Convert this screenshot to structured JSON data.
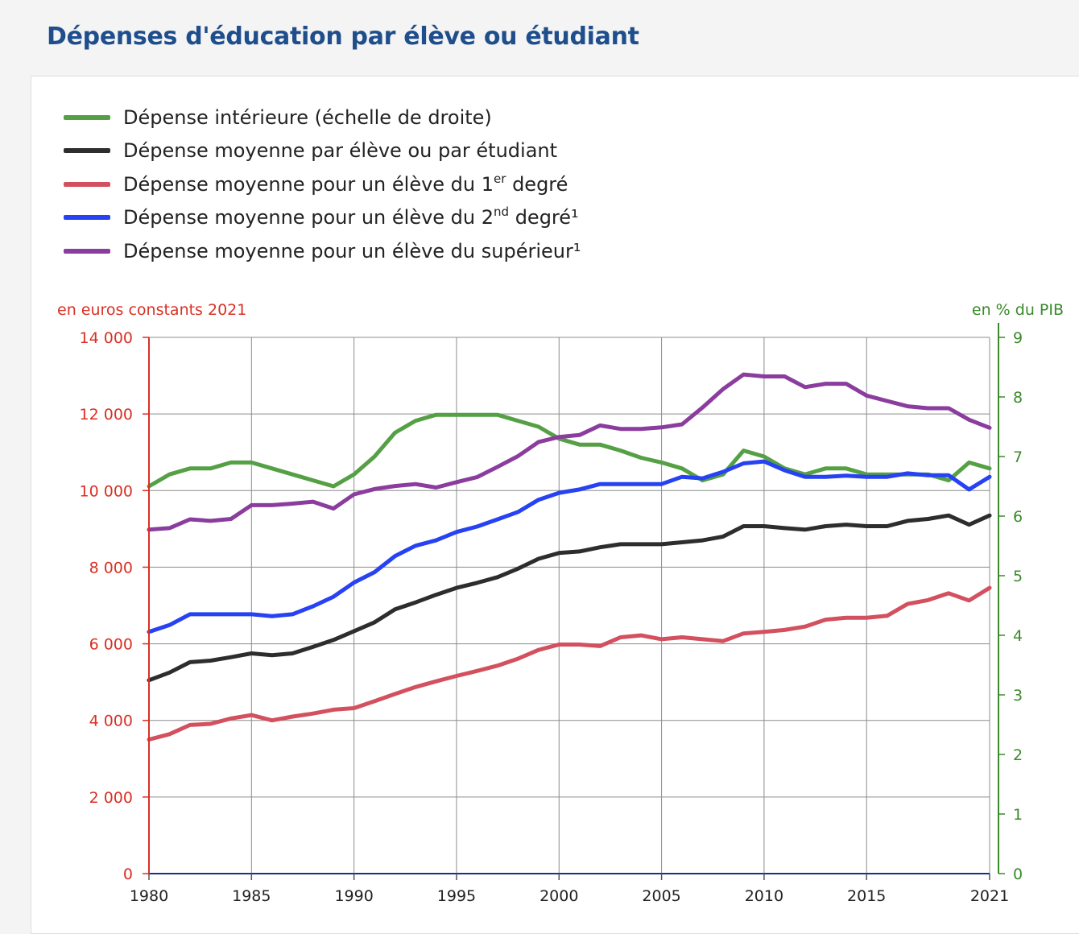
{
  "page": {
    "title": "Dépenses d'éducation par élève ou étudiant"
  },
  "colors": {
    "green": "#55a045",
    "black": "#2d2d2d",
    "red": "#d3505e",
    "blue": "#2642f2",
    "purple": "#8a3d9e",
    "left_axis": "#d93025",
    "right_axis": "#3a8a2a",
    "grid": "#8c8c8c"
  },
  "legend": [
    {
      "key": "interieure",
      "color": "#55a045",
      "text": "Dépense intérieure (échelle de droite)",
      "sup": "",
      "after": ""
    },
    {
      "key": "moyenne",
      "color": "#2d2d2d",
      "text": "Dépense moyenne par élève ou par étudiant",
      "sup": "",
      "after": ""
    },
    {
      "key": "premier",
      "color": "#d3505e",
      "text": "Dépense moyenne pour un élève du 1",
      "sup": "er",
      "after": " degré"
    },
    {
      "key": "second",
      "color": "#2642f2",
      "text": "Dépense moyenne pour un élève du 2",
      "sup": "nd",
      "after": " degré¹"
    },
    {
      "key": "superieur",
      "color": "#8a3d9e",
      "text": "Dépense moyenne pour un élève du supérieur¹",
      "sup": "",
      "after": ""
    }
  ],
  "chart_data": {
    "type": "line",
    "left_axis_label": "en euros constants 2021",
    "right_axis_label": "en % du PIB",
    "x_ticks": [
      "1980",
      "1985",
      "1990",
      "1995",
      "2000",
      "2005",
      "2010",
      "2015",
      "2021"
    ],
    "xlim": [
      1980,
      2021
    ],
    "ylim_left": [
      0,
      14000
    ],
    "ylim_right": [
      0,
      9
    ],
    "left_ticks": [
      {
        "value": 0,
        "label": "0"
      },
      {
        "value": 2000,
        "label": "2 000"
      },
      {
        "value": 4000,
        "label": "4 000"
      },
      {
        "value": 6000,
        "label": "6 000"
      },
      {
        "value": 8000,
        "label": "8 000"
      },
      {
        "value": 10000,
        "label": "10 000"
      },
      {
        "value": 12000,
        "label": "12 000"
      },
      {
        "value": 14000,
        "label": "14 000"
      }
    ],
    "right_ticks": [
      {
        "value": 0,
        "label": "0"
      },
      {
        "value": 1,
        "label": "1"
      },
      {
        "value": 2,
        "label": "2"
      },
      {
        "value": 3,
        "label": "3"
      },
      {
        "value": 4,
        "label": "4"
      },
      {
        "value": 5,
        "label": "5"
      },
      {
        "value": 6,
        "label": "6"
      },
      {
        "value": 7,
        "label": "7"
      },
      {
        "value": 8,
        "label": "8"
      },
      {
        "value": 9,
        "label": "9"
      }
    ],
    "grid": true,
    "series": [
      {
        "key": "interieure",
        "axis": "right",
        "color": "#55a045",
        "points": [
          [
            1980,
            6.5
          ],
          [
            1981,
            6.7
          ],
          [
            1982,
            6.8
          ],
          [
            1983,
            6.8
          ],
          [
            1984,
            6.9
          ],
          [
            1985,
            6.9
          ],
          [
            1986,
            6.8
          ],
          [
            1987,
            6.7
          ],
          [
            1988,
            6.6
          ],
          [
            1989,
            6.5
          ],
          [
            1990,
            6.7
          ],
          [
            1991,
            7.0
          ],
          [
            1992,
            7.4
          ],
          [
            1993,
            7.6
          ],
          [
            1994,
            7.7
          ],
          [
            1995,
            7.7
          ],
          [
            1996,
            7.7
          ],
          [
            1997,
            7.7
          ],
          [
            1998,
            7.6
          ],
          [
            1999,
            7.5
          ],
          [
            2000,
            7.3
          ],
          [
            2001,
            7.2
          ],
          [
            2002,
            7.2
          ],
          [
            2003,
            7.1
          ],
          [
            2004,
            6.98
          ],
          [
            2005,
            6.9
          ],
          [
            2006,
            6.8
          ],
          [
            2007,
            6.6
          ],
          [
            2008,
            6.7
          ],
          [
            2009,
            7.1
          ],
          [
            2010,
            7.0
          ],
          [
            2011,
            6.8
          ],
          [
            2012,
            6.7
          ],
          [
            2013,
            6.8
          ],
          [
            2014,
            6.8
          ],
          [
            2015,
            6.7
          ],
          [
            2016,
            6.7
          ],
          [
            2017,
            6.7
          ],
          [
            2018,
            6.7
          ],
          [
            2019,
            6.6
          ],
          [
            2020,
            6.9
          ],
          [
            2021,
            6.8
          ]
        ]
      },
      {
        "key": "moyenne",
        "axis": "left",
        "color": "#2d2d2d",
        "points": [
          [
            1980,
            5050
          ],
          [
            1981,
            5250
          ],
          [
            1982,
            5520
          ],
          [
            1983,
            5560
          ],
          [
            1984,
            5650
          ],
          [
            1985,
            5750
          ],
          [
            1986,
            5700
          ],
          [
            1987,
            5750
          ],
          [
            1988,
            5920
          ],
          [
            1989,
            6100
          ],
          [
            1990,
            6330
          ],
          [
            1991,
            6560
          ],
          [
            1992,
            6900
          ],
          [
            1993,
            7080
          ],
          [
            1994,
            7280
          ],
          [
            1995,
            7460
          ],
          [
            1996,
            7590
          ],
          [
            1997,
            7740
          ],
          [
            1998,
            7960
          ],
          [
            1999,
            8220
          ],
          [
            2000,
            8370
          ],
          [
            2001,
            8410
          ],
          [
            2002,
            8520
          ],
          [
            2003,
            8600
          ],
          [
            2004,
            8600
          ],
          [
            2005,
            8600
          ],
          [
            2006,
            8650
          ],
          [
            2007,
            8700
          ],
          [
            2008,
            8800
          ],
          [
            2009,
            9070
          ],
          [
            2010,
            9070
          ],
          [
            2011,
            9020
          ],
          [
            2012,
            8980
          ],
          [
            2013,
            9070
          ],
          [
            2014,
            9110
          ],
          [
            2015,
            9070
          ],
          [
            2016,
            9070
          ],
          [
            2017,
            9210
          ],
          [
            2018,
            9260
          ],
          [
            2019,
            9350
          ],
          [
            2020,
            9110
          ],
          [
            2021,
            9350
          ]
        ]
      },
      {
        "key": "premier",
        "axis": "left",
        "color": "#d3505e",
        "points": [
          [
            1980,
            3500
          ],
          [
            1981,
            3640
          ],
          [
            1982,
            3880
          ],
          [
            1983,
            3910
          ],
          [
            1984,
            4050
          ],
          [
            1985,
            4140
          ],
          [
            1986,
            4000
          ],
          [
            1987,
            4100
          ],
          [
            1988,
            4180
          ],
          [
            1989,
            4280
          ],
          [
            1990,
            4320
          ],
          [
            1991,
            4500
          ],
          [
            1992,
            4690
          ],
          [
            1993,
            4870
          ],
          [
            1994,
            5020
          ],
          [
            1995,
            5160
          ],
          [
            1996,
            5290
          ],
          [
            1997,
            5430
          ],
          [
            1998,
            5610
          ],
          [
            1999,
            5840
          ],
          [
            2000,
            5980
          ],
          [
            2001,
            5980
          ],
          [
            2002,
            5940
          ],
          [
            2003,
            6170
          ],
          [
            2004,
            6220
          ],
          [
            2005,
            6120
          ],
          [
            2006,
            6170
          ],
          [
            2007,
            6120
          ],
          [
            2008,
            6070
          ],
          [
            2009,
            6270
          ],
          [
            2010,
            6310
          ],
          [
            2011,
            6360
          ],
          [
            2012,
            6450
          ],
          [
            2013,
            6630
          ],
          [
            2014,
            6680
          ],
          [
            2015,
            6680
          ],
          [
            2016,
            6730
          ],
          [
            2017,
            7040
          ],
          [
            2018,
            7140
          ],
          [
            2019,
            7320
          ],
          [
            2020,
            7130
          ],
          [
            2021,
            7460
          ]
        ]
      },
      {
        "key": "second",
        "axis": "left",
        "color": "#2642f2",
        "points": [
          [
            1980,
            6310
          ],
          [
            1981,
            6490
          ],
          [
            1982,
            6770
          ],
          [
            1983,
            6770
          ],
          [
            1984,
            6770
          ],
          [
            1985,
            6770
          ],
          [
            1986,
            6720
          ],
          [
            1987,
            6770
          ],
          [
            1988,
            6980
          ],
          [
            1989,
            7230
          ],
          [
            1990,
            7600
          ],
          [
            1991,
            7870
          ],
          [
            1992,
            8290
          ],
          [
            1993,
            8560
          ],
          [
            1994,
            8700
          ],
          [
            1995,
            8920
          ],
          [
            1996,
            9060
          ],
          [
            1997,
            9250
          ],
          [
            1998,
            9440
          ],
          [
            1999,
            9760
          ],
          [
            2000,
            9940
          ],
          [
            2001,
            10030
          ],
          [
            2002,
            10170
          ],
          [
            2003,
            10170
          ],
          [
            2004,
            10170
          ],
          [
            2005,
            10170
          ],
          [
            2006,
            10360
          ],
          [
            2007,
            10320
          ],
          [
            2008,
            10490
          ],
          [
            2009,
            10710
          ],
          [
            2010,
            10760
          ],
          [
            2011,
            10530
          ],
          [
            2012,
            10360
          ],
          [
            2013,
            10360
          ],
          [
            2014,
            10390
          ],
          [
            2015,
            10360
          ],
          [
            2016,
            10360
          ],
          [
            2017,
            10450
          ],
          [
            2018,
            10400
          ],
          [
            2019,
            10400
          ],
          [
            2020,
            10030
          ],
          [
            2021,
            10360
          ]
        ]
      },
      {
        "key": "superieur",
        "axis": "left",
        "color": "#8a3d9e",
        "points": [
          [
            1980,
            8980
          ],
          [
            1981,
            9020
          ],
          [
            1982,
            9250
          ],
          [
            1983,
            9210
          ],
          [
            1984,
            9260
          ],
          [
            1985,
            9620
          ],
          [
            1986,
            9620
          ],
          [
            1987,
            9660
          ],
          [
            1988,
            9710
          ],
          [
            1989,
            9530
          ],
          [
            1990,
            9900
          ],
          [
            1991,
            10040
          ],
          [
            1992,
            10120
          ],
          [
            1993,
            10170
          ],
          [
            1994,
            10080
          ],
          [
            1995,
            10220
          ],
          [
            1996,
            10350
          ],
          [
            1997,
            10620
          ],
          [
            1998,
            10900
          ],
          [
            1999,
            11270
          ],
          [
            2000,
            11400
          ],
          [
            2001,
            11450
          ],
          [
            2002,
            11700
          ],
          [
            2003,
            11610
          ],
          [
            2004,
            11610
          ],
          [
            2005,
            11650
          ],
          [
            2006,
            11730
          ],
          [
            2007,
            12170
          ],
          [
            2008,
            12650
          ],
          [
            2009,
            13030
          ],
          [
            2010,
            12980
          ],
          [
            2011,
            12980
          ],
          [
            2012,
            12700
          ],
          [
            2013,
            12790
          ],
          [
            2014,
            12790
          ],
          [
            2015,
            12480
          ],
          [
            2016,
            12340
          ],
          [
            2017,
            12200
          ],
          [
            2018,
            12150
          ],
          [
            2019,
            12150
          ],
          [
            2020,
            11850
          ],
          [
            2021,
            11640
          ]
        ]
      }
    ]
  }
}
